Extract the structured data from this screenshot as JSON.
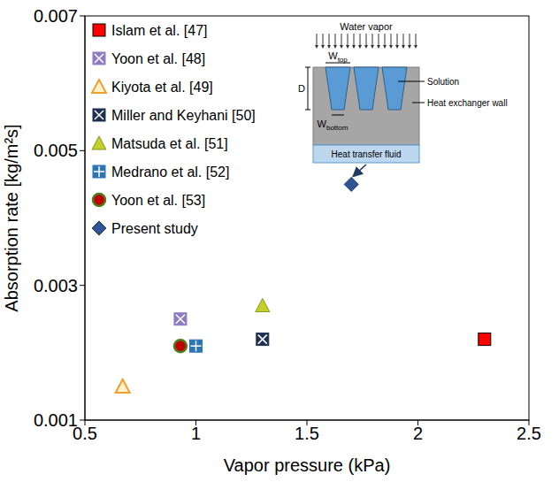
{
  "chart_data": {
    "type": "scatter",
    "x_label": "Vapor pressure (kPa)",
    "y_label": "Absorption rate [kg/m²s]",
    "xlim": [
      0.5,
      2.5
    ],
    "xticks": [
      0.5,
      1,
      1.5,
      2,
      2.5
    ],
    "ylim": [
      0.001,
      0.007
    ],
    "yticks": [
      0.001,
      0.003,
      0.005,
      0.007
    ],
    "grid": false,
    "legend": "upper left",
    "series": [
      {
        "name": "Islam et al. [47]",
        "color": "#ff0000",
        "marker": "square",
        "x": [
          2.3
        ],
        "values": [
          0.0022
        ]
      },
      {
        "name": "Yoon et al. [48]",
        "color": "#8e7cc3",
        "marker": "square_x",
        "x": [
          0.93
        ],
        "values": [
          0.0025
        ]
      },
      {
        "name": "Kiyota et al. [49]",
        "color": "#f0a030",
        "marker": "triangle_open",
        "x": [
          0.67
        ],
        "values": [
          0.0015
        ]
      },
      {
        "name": "Miller and Keyhani [50]",
        "color": "#1f3050",
        "marker": "square_x",
        "x": [
          1.3
        ],
        "values": [
          0.0022
        ]
      },
      {
        "name": "Matsuda et al. [51]",
        "color": "#c4d02a",
        "marker": "triangle",
        "x": [
          1.3
        ],
        "values": [
          0.0027
        ]
      },
      {
        "name": "Medrano et al. [52]",
        "color": "#2e75b6",
        "marker": "square_plus",
        "x": [
          1.0
        ],
        "values": [
          0.0021
        ]
      },
      {
        "name": "Yoon et al. [53]",
        "color": "#c00000",
        "marker": "circle",
        "x": [
          0.93
        ],
        "values": [
          0.0021
        ]
      },
      {
        "name": "Present study",
        "color": "#2f5597",
        "marker": "diamond",
        "x": [
          1.7
        ],
        "values": [
          0.0045
        ]
      }
    ],
    "inset": {
      "title": "Water vapor",
      "depth": "D",
      "top_width": {
        "symbol": "W",
        "subscript": "top"
      },
      "bottom_width": {
        "symbol": "W",
        "subscript": "bottom"
      },
      "solution": "Solution",
      "wall": "Heat exchanger wall",
      "fluid": "Heat transfer fluid"
    }
  }
}
